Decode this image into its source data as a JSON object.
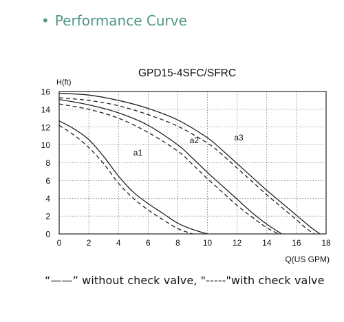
{
  "header": {
    "bullet": "•",
    "title": "Performance Curve"
  },
  "legend_text": "“——” without check valve, \"-----\"with check valve",
  "colors": {
    "curve": "#222222",
    "grid": "#333333",
    "header": "#4e9686"
  },
  "chart_data": {
    "type": "line",
    "title": "GPD15-4SFC/SFRC",
    "ylabel": "H(ft)",
    "xlabel": "Q(US GPM)",
    "xlim": [
      0,
      18
    ],
    "ylim": [
      0,
      16
    ],
    "xticks": [
      0,
      2,
      4,
      6,
      8,
      10,
      12,
      14,
      16,
      18
    ],
    "yticks": [
      0,
      2,
      4,
      6,
      8,
      10,
      12,
      14,
      16
    ],
    "grid": true,
    "legend": "bottom",
    "series": [
      {
        "label": "a1",
        "label_at": [
          5,
          8.8
        ],
        "style": "solid",
        "x": [
          0,
          1,
          2,
          3,
          4,
          5,
          6,
          7,
          8,
          9,
          10
        ],
        "y": [
          12.7,
          11.8,
          10.6,
          8.7,
          6.5,
          4.7,
          3.4,
          2.3,
          1.2,
          0.5,
          0
        ]
      },
      {
        "style": "dashed",
        "x": [
          0,
          1,
          2,
          3,
          4,
          5,
          6,
          7,
          8,
          9
        ],
        "y": [
          12.2,
          11.1,
          9.7,
          7.9,
          5.7,
          4.0,
          2.7,
          1.6,
          0.6,
          0
        ]
      },
      {
        "label": "a2",
        "label_at": [
          8.8,
          10.2
        ],
        "style": "solid",
        "x": [
          0,
          2,
          4,
          6,
          8,
          9,
          10,
          11,
          12,
          13,
          14,
          15
        ],
        "y": [
          15.1,
          14.5,
          13.6,
          12.2,
          10.0,
          8.5,
          6.9,
          5.4,
          3.9,
          2.4,
          1.1,
          0
        ]
      },
      {
        "style": "dashed",
        "x": [
          0,
          2,
          4,
          6,
          8,
          9,
          10,
          11,
          12,
          13,
          14,
          14.8
        ],
        "y": [
          14.6,
          14.0,
          13.0,
          11.4,
          9.3,
          7.8,
          6.2,
          4.7,
          3.2,
          1.9,
          0.7,
          0
        ]
      },
      {
        "label": "a3",
        "label_at": [
          11.8,
          10.5
        ],
        "style": "solid",
        "x": [
          0,
          2,
          4,
          6,
          8,
          10,
          11,
          12,
          13,
          14,
          15,
          16,
          17,
          17.6
        ],
        "y": [
          15.8,
          15.6,
          15.0,
          14.1,
          12.8,
          10.8,
          9.4,
          7.9,
          6.4,
          4.9,
          3.5,
          2.1,
          0.7,
          0
        ]
      },
      {
        "style": "dashed",
        "x": [
          0,
          2,
          4,
          6,
          8,
          10,
          11,
          12,
          13,
          14,
          15,
          16,
          16.6,
          17.2
        ],
        "y": [
          15.3,
          15.0,
          14.4,
          13.4,
          12.1,
          10.2,
          8.9,
          7.4,
          5.9,
          4.4,
          3.0,
          1.6,
          0.7,
          0
        ]
      }
    ]
  }
}
